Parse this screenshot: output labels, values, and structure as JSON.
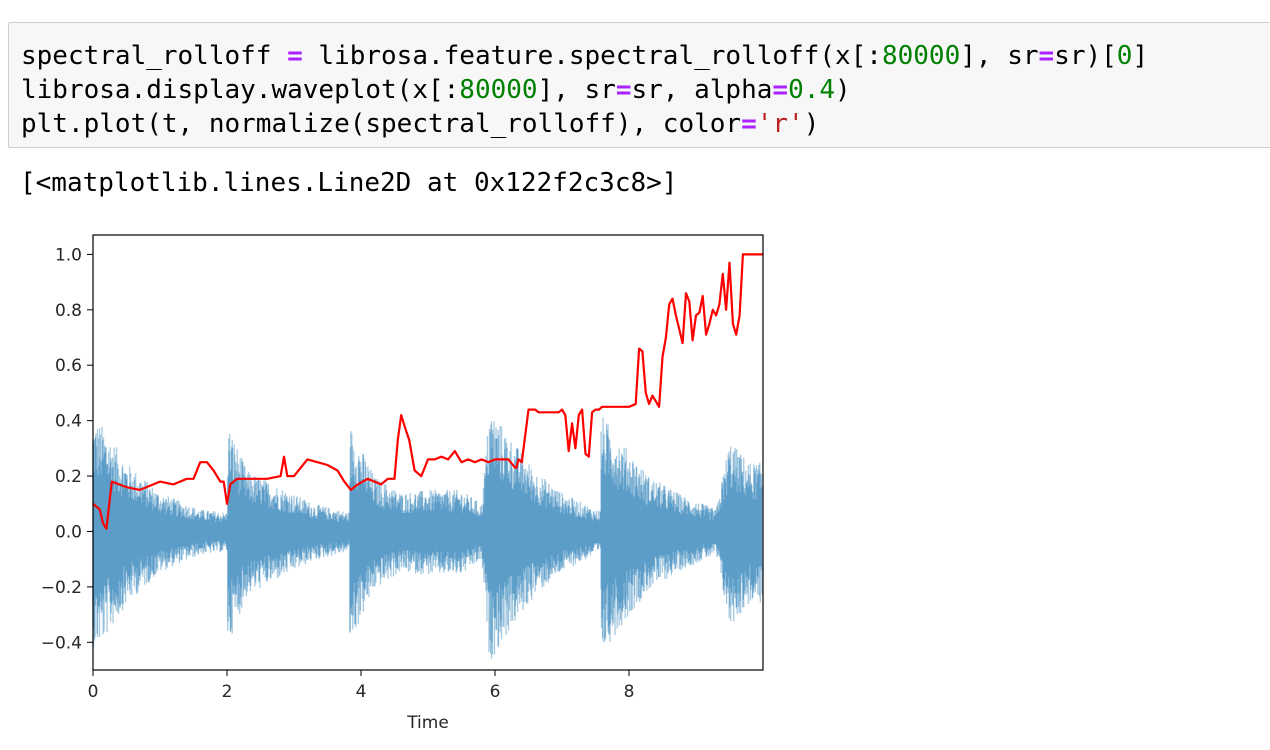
{
  "code_cell": {
    "line1": {
      "a": "spectral_rolloff ",
      "op1": "=",
      "b": " librosa.feature.spectral_rolloff(x[:",
      "n1": "80000",
      "c": "], sr",
      "op2": "=",
      "d": "sr)[",
      "n2": "0",
      "e": "]"
    },
    "line2": {
      "a": "librosa.display.waveplot(x[:",
      "n1": "80000",
      "b": "], sr",
      "op1": "=",
      "c": "sr, alpha",
      "op2": "=",
      "n2": "0.4",
      "d": ")"
    },
    "line3": {
      "a": "plt.plot(t, normalize(spectral_rolloff), color",
      "op1": "=",
      "s1": "'r'",
      "b": ")"
    }
  },
  "output": {
    "text": "[<matplotlib.lines.Line2D at 0x122f2c3c8>]"
  },
  "chart_data": {
    "type": "line",
    "xlabel": "Time",
    "ylabel": "",
    "xlim": [
      0,
      10
    ],
    "ylim": [
      -0.5,
      1.07
    ],
    "x_ticks": [
      "0",
      "2",
      "4",
      "6",
      "8"
    ],
    "y_ticks": [
      "−0.4",
      "−0.2",
      "0.0",
      "0.2",
      "0.4",
      "0.6",
      "0.8",
      "1.0"
    ],
    "series": [
      {
        "kind": "waveform",
        "color": "#1f77b4",
        "alpha": 0.4,
        "segments": [
          {
            "t": 0.05,
            "amp": 0.4
          },
          {
            "t": 0.15,
            "amp": 0.38
          },
          {
            "t": 0.5,
            "amp": 0.25
          },
          {
            "t": 1.0,
            "amp": 0.14
          },
          {
            "t": 1.6,
            "amp": 0.08
          },
          {
            "t": 1.98,
            "amp": 0.07
          },
          {
            "t": 2.03,
            "amp": 0.38
          },
          {
            "t": 2.3,
            "amp": 0.22
          },
          {
            "t": 2.8,
            "amp": 0.16
          },
          {
            "t": 3.3,
            "amp": 0.1
          },
          {
            "t": 3.8,
            "amp": 0.07
          },
          {
            "t": 3.85,
            "amp": 0.38
          },
          {
            "t": 4.2,
            "amp": 0.2
          },
          {
            "t": 4.6,
            "amp": 0.14
          },
          {
            "t": 5.0,
            "amp": 0.15
          },
          {
            "t": 5.5,
            "amp": 0.15
          },
          {
            "t": 5.8,
            "amp": 0.1
          },
          {
            "t": 5.92,
            "amp": 0.45
          },
          {
            "t": 6.2,
            "amp": 0.35
          },
          {
            "t": 6.6,
            "amp": 0.22
          },
          {
            "t": 7.0,
            "amp": 0.14
          },
          {
            "t": 7.5,
            "amp": 0.08
          },
          {
            "t": 7.6,
            "amp": 0.42
          },
          {
            "t": 7.9,
            "amp": 0.32
          },
          {
            "t": 8.3,
            "amp": 0.2
          },
          {
            "t": 8.8,
            "amp": 0.13
          },
          {
            "t": 9.3,
            "amp": 0.08
          },
          {
            "t": 9.5,
            "amp": 0.33
          },
          {
            "t": 9.8,
            "amp": 0.25
          },
          {
            "t": 9.97,
            "amp": 0.25
          }
        ]
      },
      {
        "kind": "line",
        "color": "#ff0000",
        "x": [
          0,
          0.1,
          0.15,
          0.2,
          0.28,
          0.5,
          0.7,
          1.0,
          1.2,
          1.4,
          1.5,
          1.6,
          1.7,
          1.8,
          1.9,
          1.95,
          2.0,
          2.05,
          2.15,
          2.3,
          2.6,
          2.8,
          2.85,
          2.9,
          3.0,
          3.2,
          3.35,
          3.5,
          3.65,
          3.75,
          3.85,
          3.95,
          4.1,
          4.3,
          4.4,
          4.5,
          4.55,
          4.6,
          4.65,
          4.72,
          4.8,
          4.9,
          5.0,
          5.1,
          5.2,
          5.3,
          5.4,
          5.5,
          5.6,
          5.7,
          5.8,
          5.9,
          6.0,
          6.1,
          6.2,
          6.3,
          6.32,
          6.35,
          6.4,
          6.5,
          6.6,
          6.65,
          6.8,
          6.95,
          7.0,
          7.05,
          7.1,
          7.15,
          7.2,
          7.25,
          7.3,
          7.35,
          7.4,
          7.45,
          7.5,
          7.55,
          7.6,
          7.65,
          7.7,
          7.8,
          7.9,
          8.0,
          8.1,
          8.15,
          8.2,
          8.25,
          8.3,
          8.35,
          8.4,
          8.45,
          8.5,
          8.55,
          8.6,
          8.65,
          8.7,
          8.8,
          8.85,
          8.9,
          8.95,
          9.0,
          9.05,
          9.1,
          9.15,
          9.2,
          9.25,
          9.3,
          9.35,
          9.4,
          9.45,
          9.5,
          9.55,
          9.6,
          9.65,
          9.7,
          9.75,
          9.8,
          9.85,
          9.9,
          9.95,
          10.0
        ],
        "y": [
          0.1,
          0.08,
          0.03,
          0.01,
          0.18,
          0.16,
          0.15,
          0.18,
          0.17,
          0.19,
          0.19,
          0.25,
          0.25,
          0.22,
          0.18,
          0.18,
          0.1,
          0.17,
          0.19,
          0.19,
          0.19,
          0.2,
          0.27,
          0.2,
          0.2,
          0.26,
          0.25,
          0.24,
          0.22,
          0.18,
          0.15,
          0.17,
          0.19,
          0.17,
          0.19,
          0.19,
          0.33,
          0.42,
          0.38,
          0.33,
          0.22,
          0.2,
          0.26,
          0.26,
          0.27,
          0.26,
          0.29,
          0.25,
          0.26,
          0.25,
          0.26,
          0.25,
          0.26,
          0.26,
          0.26,
          0.23,
          0.23,
          0.26,
          0.25,
          0.44,
          0.44,
          0.43,
          0.43,
          0.43,
          0.44,
          0.42,
          0.29,
          0.39,
          0.3,
          0.42,
          0.44,
          0.28,
          0.27,
          0.43,
          0.44,
          0.44,
          0.45,
          0.45,
          0.45,
          0.45,
          0.45,
          0.45,
          0.46,
          0.66,
          0.65,
          0.5,
          0.46,
          0.49,
          0.47,
          0.45,
          0.63,
          0.7,
          0.82,
          0.84,
          0.78,
          0.68,
          0.86,
          0.83,
          0.69,
          0.78,
          0.79,
          0.85,
          0.71,
          0.75,
          0.8,
          0.78,
          0.82,
          0.93,
          0.8,
          0.97,
          0.75,
          0.71,
          0.78,
          1.0,
          1.0,
          1.0,
          1.0,
          1.0,
          1.0,
          1.0
        ]
      }
    ]
  }
}
